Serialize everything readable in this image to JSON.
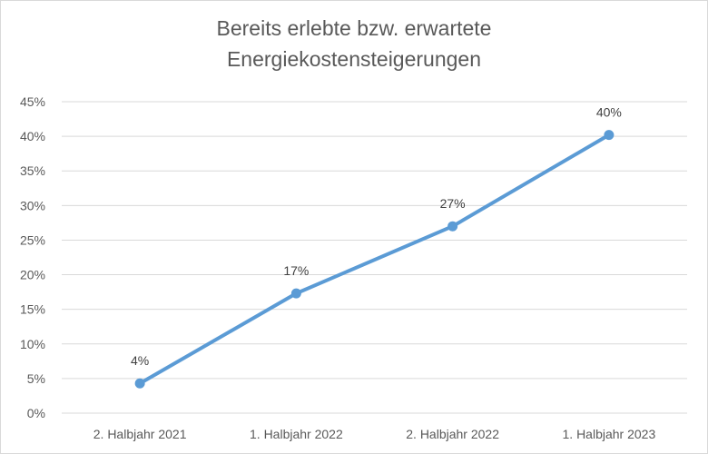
{
  "chart_data": {
    "type": "line",
    "title_line1": "Bereits erlebte bzw. erwartete",
    "title_line2": "Energiekostensteigerungen",
    "categories": [
      "2. Halbjahr 2021",
      "1. Halbjahr 2022",
      "2. Halbjahr 2022",
      "1. Halbjahr 2023"
    ],
    "series": [
      {
        "values": [
          4.3,
          17.3,
          27,
          40.2
        ],
        "labels": [
          "4%",
          "17%",
          "27%",
          "40%"
        ],
        "color": "#5b9bd5"
      }
    ],
    "y_ticks": [
      "0%",
      "5%",
      "10%",
      "15%",
      "20%",
      "25%",
      "30%",
      "35%",
      "40%",
      "45%"
    ],
    "ylim": [
      0,
      45
    ],
    "xlabel": "",
    "ylabel": "",
    "grid": true,
    "gridline_color": "#d9d9d9"
  }
}
